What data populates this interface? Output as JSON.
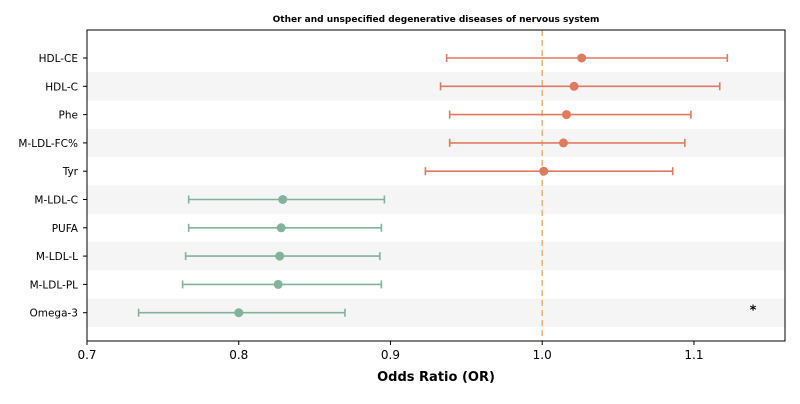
{
  "chart_data": {
    "type": "forest",
    "title": "Other and unspecified degenerative diseases of nervous system",
    "xlabel": "Odds Ratio (OR)",
    "xlim": [
      0.7,
      1.16
    ],
    "xticks": [
      "0.7",
      "0.8",
      "0.9",
      "1.0",
      "1.1"
    ],
    "reference_line": 1.0,
    "colors": {
      "positive": "#e07a5f",
      "negative": "#81b29a",
      "reference": "#f2b26b",
      "band": "#f5f5f5"
    },
    "rows": [
      {
        "label": "HDL-CE",
        "or": 1.026,
        "low": 0.937,
        "high": 1.122,
        "group": "positive",
        "mark": ""
      },
      {
        "label": "HDL-C",
        "or": 1.021,
        "low": 0.933,
        "high": 1.117,
        "group": "positive",
        "mark": ""
      },
      {
        "label": "Phe",
        "or": 1.016,
        "low": 0.939,
        "high": 1.098,
        "group": "positive",
        "mark": ""
      },
      {
        "label": "M-LDL-FC%",
        "or": 1.014,
        "low": 0.939,
        "high": 1.094,
        "group": "positive",
        "mark": ""
      },
      {
        "label": "Tyr",
        "or": 1.001,
        "low": 0.923,
        "high": 1.086,
        "group": "positive",
        "mark": ""
      },
      {
        "label": "M-LDL-C",
        "or": 0.829,
        "low": 0.767,
        "high": 0.896,
        "group": "negative",
        "mark": ""
      },
      {
        "label": "PUFA",
        "or": 0.828,
        "low": 0.767,
        "high": 0.894,
        "group": "negative",
        "mark": ""
      },
      {
        "label": "M-LDL-L",
        "or": 0.827,
        "low": 0.765,
        "high": 0.893,
        "group": "negative",
        "mark": ""
      },
      {
        "label": "M-LDL-PL",
        "or": 0.826,
        "low": 0.763,
        "high": 0.894,
        "group": "negative",
        "mark": ""
      },
      {
        "label": "Omega-3",
        "or": 0.8,
        "low": 0.734,
        "high": 0.87,
        "group": "negative",
        "mark": "*"
      }
    ]
  }
}
